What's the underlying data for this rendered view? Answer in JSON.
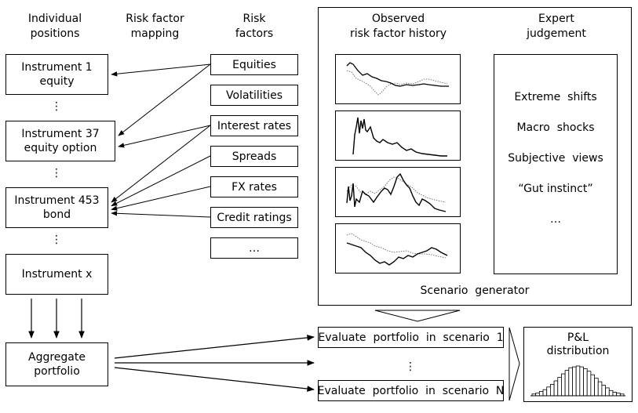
{
  "columns": {
    "positions": "Individual\npositions",
    "mapping": "Risk factor\nmapping",
    "factors": "Risk\nfactors"
  },
  "instruments": [
    {
      "label": "Instrument 1\nequity"
    },
    {
      "label": "Instrument 37\nequity option"
    },
    {
      "label": "Instrument 453\nbond"
    },
    {
      "label": "Instrument x"
    }
  ],
  "risk_factors": [
    "Equities",
    "Volatilities",
    "Interest rates",
    "Spreads",
    "FX  rates",
    "Credit ratings",
    "…"
  ],
  "vertical_ellipsis": "⋮",
  "scenario_panel": {
    "history_title": "Observed\nrisk factor history",
    "expert_title": "Expert\njudgement",
    "expert_items": [
      "Extreme  shifts",
      "Macro  shocks",
      "Subjective  views",
      "“Gut instinct”",
      "…"
    ],
    "generator_label": "Scenario  generator"
  },
  "aggregate": "Aggregate\nportfolio",
  "evaluations": [
    "Evaluate  portfolio  in  scenario  1",
    "Evaluate  portfolio  in  scenario  N"
  ],
  "pnl": "P&L\ndistribution",
  "mapping_links": [
    {
      "from": "Equities",
      "to": "Instrument 1\nequity"
    },
    {
      "from": "Equities",
      "to": "Instrument 37\nequity option"
    },
    {
      "from": "Interest rates",
      "to": "Instrument 37\nequity option"
    },
    {
      "from": "Interest rates",
      "to": "Instrument 453\nbond"
    },
    {
      "from": "Spreads",
      "to": "Instrument 453\nbond"
    },
    {
      "from": "FX  rates",
      "to": "Instrument 453\nbond"
    },
    {
      "from": "Credit ratings",
      "to": "Instrument 453\nbond"
    }
  ],
  "histogram_values": [
    2,
    3,
    5,
    7,
    10,
    13,
    17,
    21,
    25,
    29,
    32,
    33,
    34,
    33,
    31,
    28,
    24,
    20,
    16,
    12,
    9,
    6,
    4,
    3,
    2
  ]
}
